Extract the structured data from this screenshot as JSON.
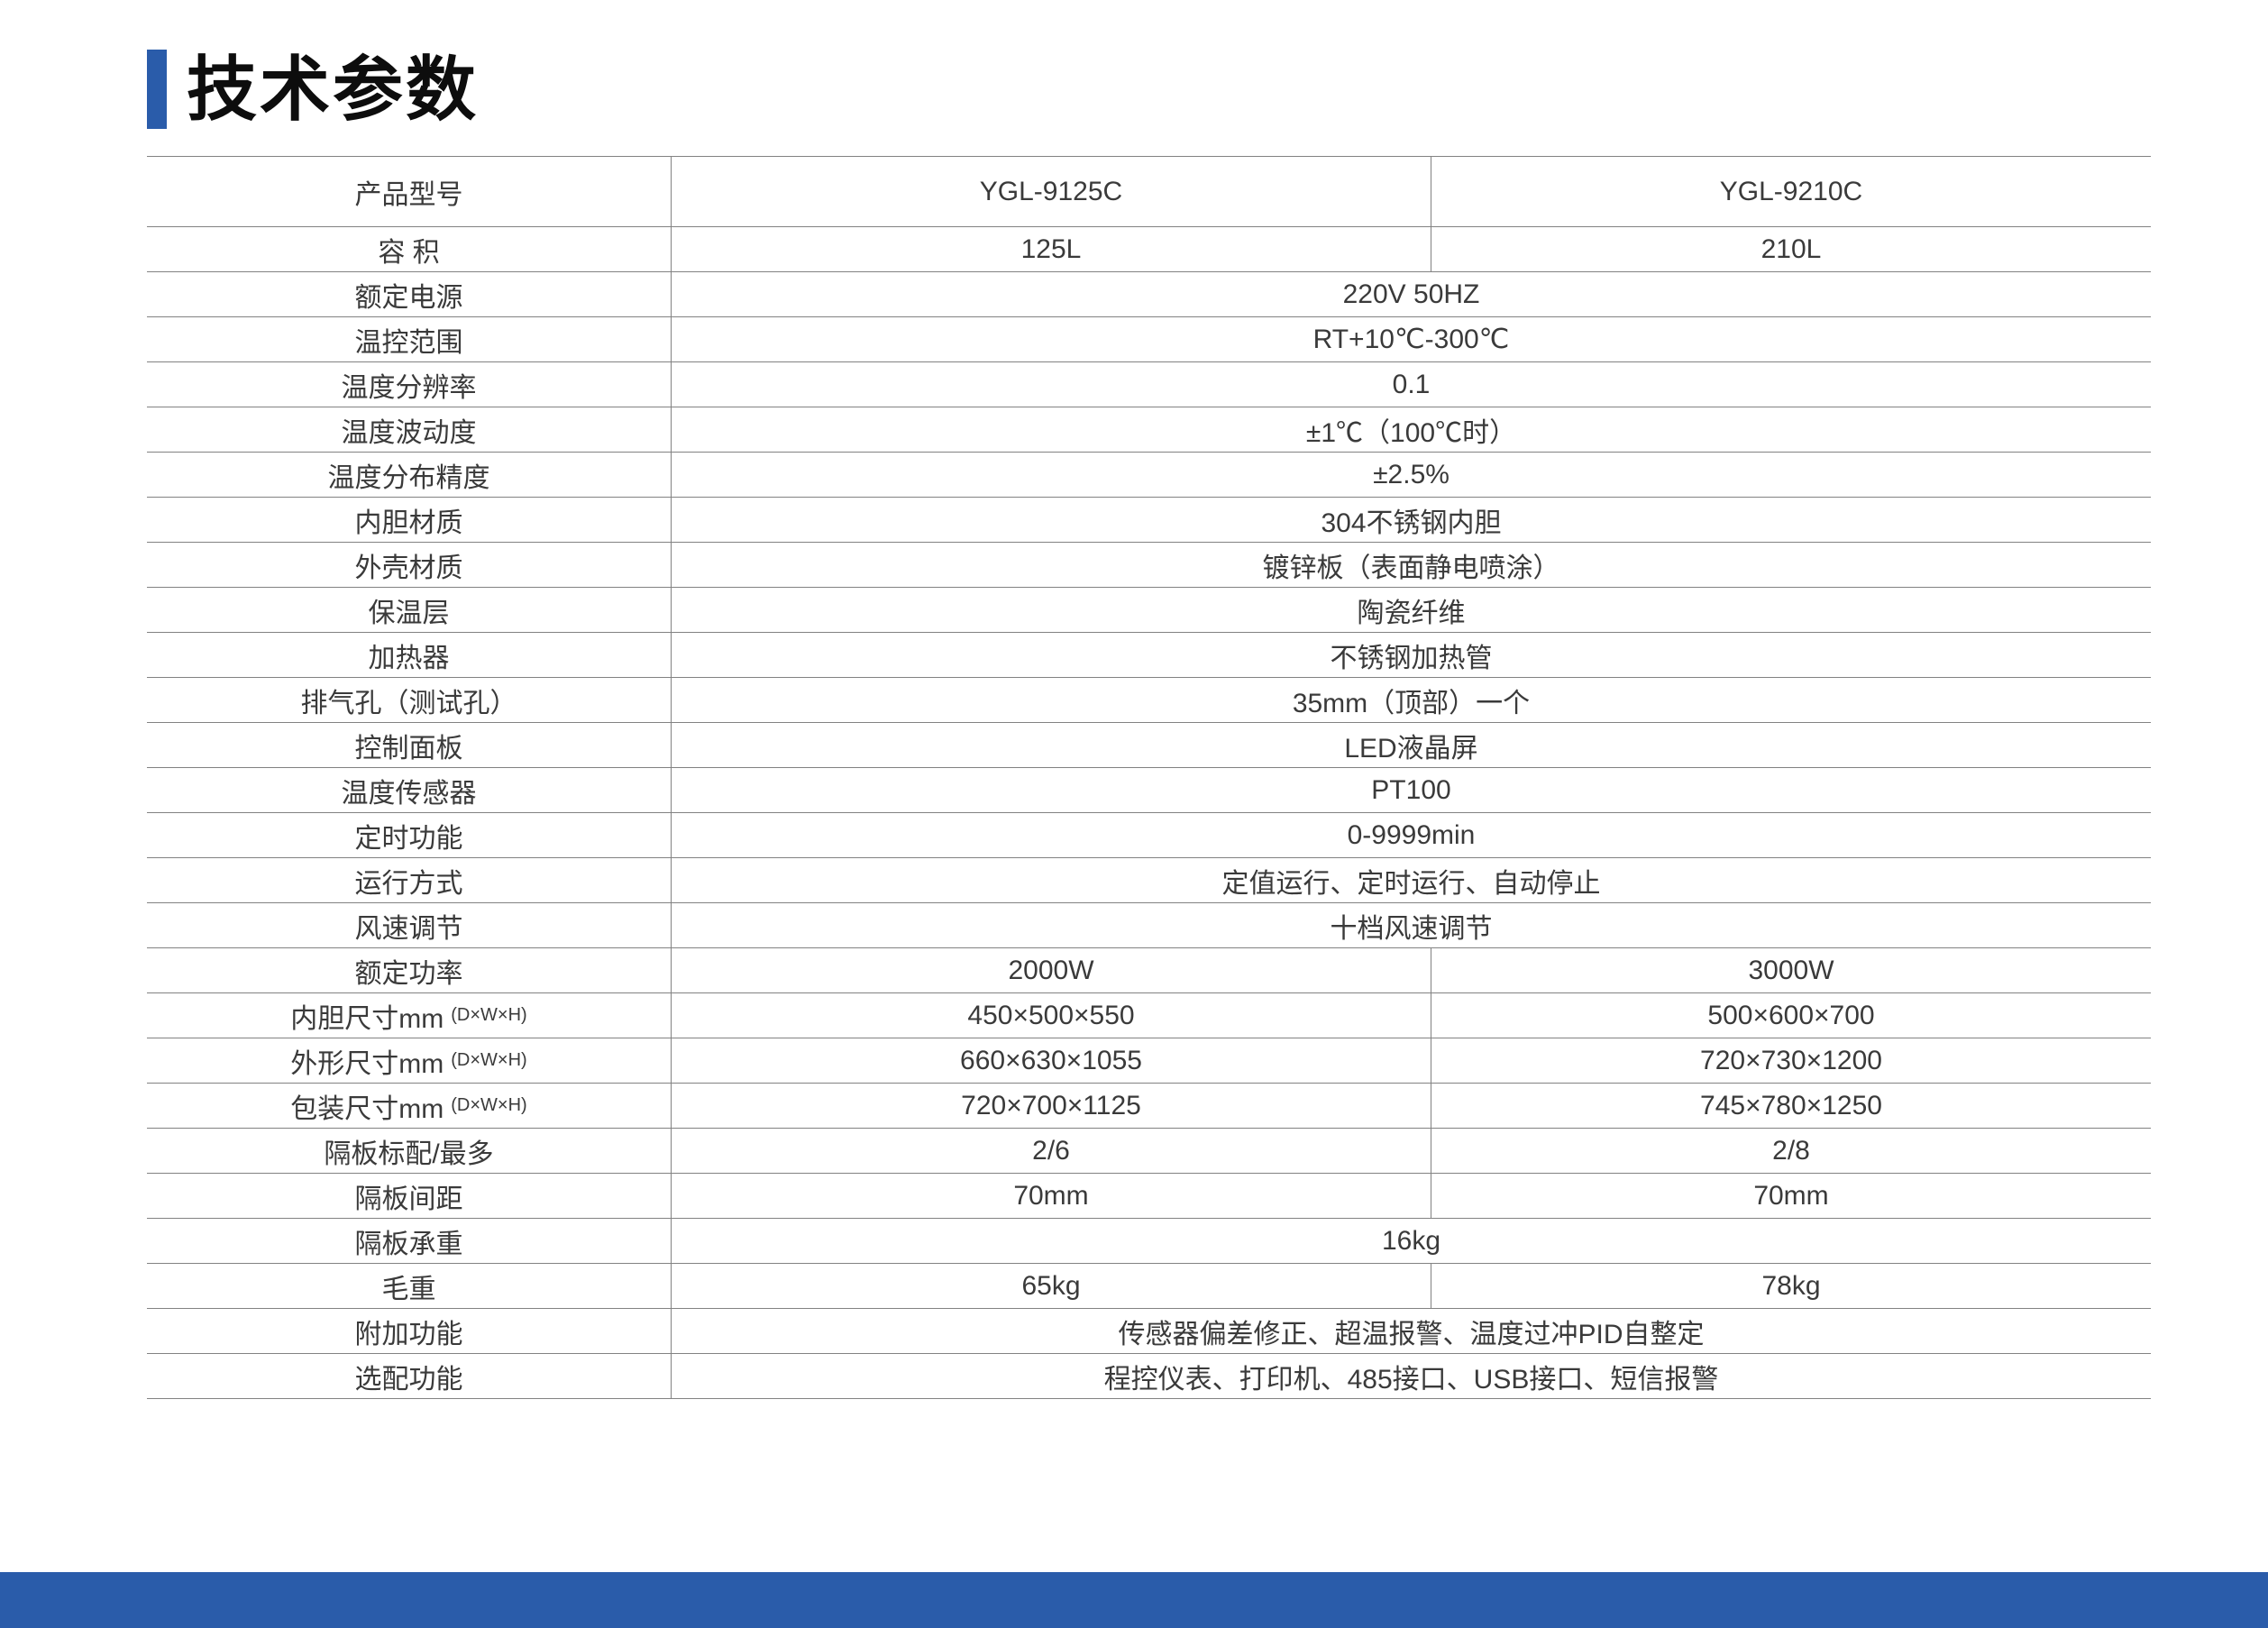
{
  "header": {
    "title": "技术参数"
  },
  "theme": {
    "accent_color": "#2a5caa",
    "line_color": "#828282"
  },
  "table": {
    "models": [
      "YGL-9125C",
      "YGL-9210C"
    ],
    "rows": [
      {
        "label": "产品型号",
        "values": [
          "YGL-9125C",
          "YGL-9210C"
        ]
      },
      {
        "label": "容 积",
        "values": [
          "125L",
          "210L"
        ]
      },
      {
        "label": "额定电源",
        "span": "220V 50HZ"
      },
      {
        "label": "温控范围",
        "span": "RT+10℃-300℃"
      },
      {
        "label": "温度分辨率",
        "span": "0.1"
      },
      {
        "label": "温度波动度",
        "span": "±1℃（100℃时）"
      },
      {
        "label": "温度分布精度",
        "span": "±2.5%"
      },
      {
        "label": "内胆材质",
        "span": "304不锈钢内胆"
      },
      {
        "label": "外壳材质",
        "span": "镀锌板（表面静电喷涂）"
      },
      {
        "label": "保温层",
        "span": "陶瓷纤维"
      },
      {
        "label": "加热器",
        "span": "不锈钢加热管"
      },
      {
        "label": "排气孔（测试孔）",
        "span": "35mm（顶部）一个"
      },
      {
        "label": "控制面板",
        "span": "LED液晶屏"
      },
      {
        "label": "温度传感器",
        "span": "PT100"
      },
      {
        "label": "定时功能",
        "span": "0-9999min"
      },
      {
        "label": "运行方式",
        "span": "定值运行、定时运行、自动停止"
      },
      {
        "label": "风速调节",
        "span": "十档风速调节"
      },
      {
        "label": "额定功率",
        "values": [
          "2000W",
          "3000W"
        ]
      },
      {
        "label": "内胆尺寸mm",
        "label_suffix": "(D×W×H)",
        "values": [
          "450×500×550",
          "500×600×700"
        ]
      },
      {
        "label": "外形尺寸mm",
        "label_suffix": "(D×W×H)",
        "values": [
          "660×630×1055",
          "720×730×1200"
        ]
      },
      {
        "label": "包装尺寸mm",
        "label_suffix": "(D×W×H)",
        "values": [
          "720×700×1125",
          "745×780×1250"
        ]
      },
      {
        "label": "隔板标配/最多",
        "values": [
          "2/6",
          "2/8"
        ]
      },
      {
        "label": "隔板间距",
        "values": [
          "70mm",
          "70mm"
        ]
      },
      {
        "label": "隔板承重",
        "span": "16kg"
      },
      {
        "label": "毛重",
        "values": [
          "65kg",
          "78kg"
        ]
      },
      {
        "label": "附加功能",
        "span": "传感器偏差修正、超温报警、温度过冲PID自整定"
      },
      {
        "label": "选配功能",
        "span": "程控仪表、打印机、485接口、USB接口、短信报警"
      }
    ]
  }
}
